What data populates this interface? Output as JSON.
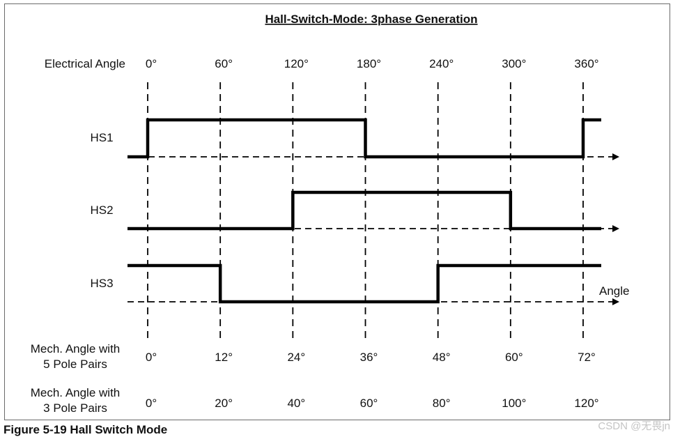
{
  "title": "Hall-Switch-Mode: 3phase Generation",
  "electrical_angle": {
    "label": "Electrical Angle",
    "degrees": [
      0,
      60,
      120,
      180,
      240,
      300,
      360
    ],
    "tick_labels": [
      "0°",
      "60°",
      "120°",
      "180°",
      "240°",
      "300°",
      "360°"
    ]
  },
  "signals": [
    {
      "label": "HS1",
      "initial_level": 0,
      "toggle_at_deg": [
        0,
        180,
        360
      ]
    },
    {
      "label": "HS2",
      "initial_level": 0,
      "toggle_at_deg": [
        120,
        300
      ]
    },
    {
      "label": "HS3",
      "initial_level": 1,
      "toggle_at_deg": [
        60,
        240
      ]
    }
  ],
  "axis_label": "Angle",
  "mechanical_angle_rows": [
    {
      "label_lines": [
        "Mech. Angle with",
        "5 Pole Pairs"
      ],
      "tick_labels": [
        "0°",
        "12°",
        "24°",
        "36°",
        "48°",
        "60°",
        "72°"
      ]
    },
    {
      "label_lines": [
        "Mech. Angle with",
        "3 Pole Pairs"
      ],
      "tick_labels": [
        "0°",
        "20°",
        "40°",
        "60°",
        "80°",
        "100°",
        "120°"
      ]
    }
  ],
  "caption": "Figure 5-19 Hall Switch Mode",
  "watermark": "CSDN @无畏jn",
  "colors": {
    "trace": "#000000",
    "frame": "#6a6a6a",
    "watermark": "#c4c4c4"
  }
}
